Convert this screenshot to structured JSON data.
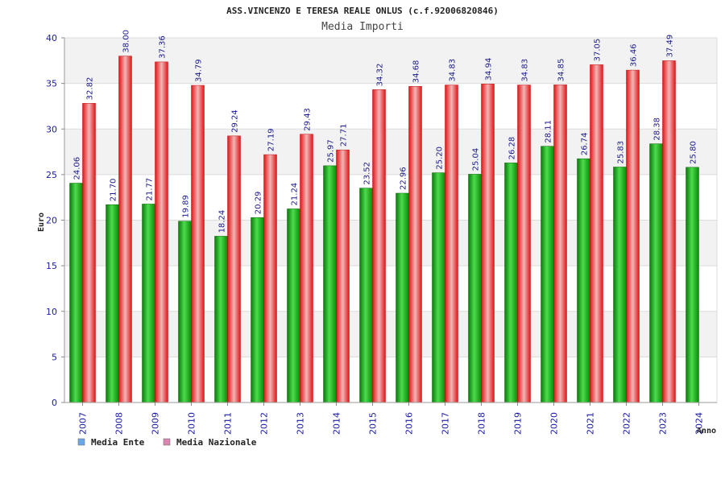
{
  "chart_data": {
    "type": "bar",
    "title": "ASS.VINCENZO E TERESA REALE ONLUS (c.f.92006820846)",
    "subtitle": "Media Importi",
    "xlabel": "Anno",
    "ylabel": "Euro",
    "ylim": [
      0,
      40
    ],
    "yticks": [
      0,
      5,
      10,
      15,
      20,
      25,
      30,
      35,
      40
    ],
    "grid": true,
    "legend_position": "bottom-left",
    "categories": [
      "2007",
      "2008",
      "2009",
      "2010",
      "2011",
      "2012",
      "2013",
      "2014",
      "2015",
      "2016",
      "2017",
      "2018",
      "2019",
      "2020",
      "2021",
      "2022",
      "2023",
      "2024"
    ],
    "series": [
      {
        "name": "Media Ente",
        "color": "#22aa22",
        "legend_color": "#6aa8e8",
        "values": [
          24.06,
          21.7,
          21.77,
          19.89,
          18.24,
          20.29,
          21.24,
          25.97,
          23.52,
          22.96,
          25.2,
          25.04,
          26.28,
          28.11,
          26.74,
          25.83,
          28.38,
          25.8
        ],
        "labels": [
          "24.06",
          "21.70",
          "21.77",
          "19.89",
          "18.24",
          "20.29",
          "21.24",
          "25.97",
          "23.52",
          "22.96",
          "25.20",
          "25.04",
          "26.28",
          "28.11",
          "26.74",
          "25.83",
          "28.38",
          "25.80"
        ]
      },
      {
        "name": "Media Nazionale",
        "color": "#e83030",
        "legend_color": "#d888b0",
        "values": [
          32.82,
          38.0,
          37.36,
          34.79,
          29.24,
          27.19,
          29.43,
          27.71,
          34.32,
          34.68,
          34.83,
          34.94,
          34.83,
          34.85,
          37.05,
          36.46,
          37.49,
          null
        ],
        "labels": [
          "32.82",
          "38.00",
          "37.36",
          "34.79",
          "29.24",
          "27.19",
          "29.43",
          "27.71",
          "34.32",
          "34.68",
          "34.83",
          "34.94",
          "34.83",
          "34.85",
          "37.05",
          "36.46",
          "37.49",
          ""
        ]
      }
    ]
  }
}
